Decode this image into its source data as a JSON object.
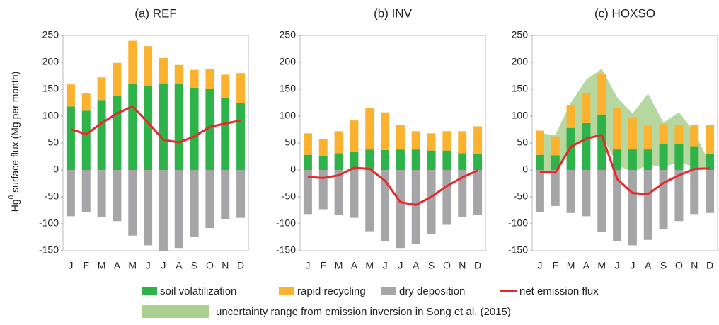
{
  "chart_data": [
    {
      "type": "bar",
      "title": "(a) REF",
      "y_label": {
        "base": "Hg",
        "sup": "0",
        "rest": " surface flux (Mg per month)"
      },
      "categories": [
        "J",
        "F",
        "M",
        "A",
        "M",
        "J",
        "J",
        "A",
        "S",
        "O",
        "N",
        "D"
      ],
      "ylim": [
        -150,
        250
      ],
      "yticks": [
        -150,
        -100,
        -50,
        0,
        50,
        100,
        150,
        200,
        250
      ],
      "series": [
        {
          "name": "soil volatilization",
          "type": "bar",
          "color": "#2eb34b",
          "values": [
            118,
            110,
            130,
            138,
            160,
            157,
            161,
            160,
            153,
            150,
            133,
            124
          ]
        },
        {
          "name": "rapid recycling",
          "type": "bar",
          "color": "#fbb32f",
          "values": [
            41,
            32,
            42,
            61,
            80,
            73,
            47,
            35,
            33,
            37,
            44,
            56
          ]
        },
        {
          "name": "dry deposition",
          "type": "bar",
          "color": "#a6a6a8",
          "values": [
            -86,
            -78,
            -88,
            -95,
            -122,
            -140,
            -150,
            -145,
            -125,
            -108,
            -92,
            -89
          ]
        },
        {
          "name": "net emission flux",
          "type": "line",
          "color": "#e8282b",
          "values": [
            76,
            66,
            87,
            105,
            118,
            88,
            56,
            51,
            62,
            80,
            86,
            92
          ]
        }
      ]
    },
    {
      "type": "bar",
      "title": "(b) INV",
      "categories": [
        "J",
        "F",
        "M",
        "A",
        "M",
        "J",
        "J",
        "A",
        "S",
        "O",
        "N",
        "D"
      ],
      "ylim": [
        -150,
        250
      ],
      "yticks": [
        -150,
        -100,
        -50,
        0,
        50,
        100,
        150,
        200,
        250
      ],
      "series": [
        {
          "type": "bar",
          "color": "#2eb34b",
          "values": [
            28,
            26,
            31,
            33,
            38,
            37,
            38,
            38,
            36,
            36,
            31,
            29
          ]
        },
        {
          "type": "bar",
          "color": "#fbb32f",
          "values": [
            40,
            31,
            41,
            59,
            77,
            70,
            46,
            34,
            32,
            36,
            41,
            52
          ]
        },
        {
          "type": "bar",
          "color": "#a6a6a8",
          "values": [
            -82,
            -73,
            -84,
            -89,
            -114,
            -133,
            -145,
            -137,
            -119,
            -102,
            -87,
            -84
          ]
        },
        {
          "type": "line",
          "color": "#e8282b",
          "values": [
            -13,
            -15,
            -10,
            4,
            2,
            -20,
            -60,
            -65,
            -50,
            -30,
            -14,
            -1
          ]
        }
      ]
    },
    {
      "type": "bar",
      "title": "(c) HOXSO",
      "categories": [
        "J",
        "F",
        "M",
        "A",
        "M",
        "J",
        "J",
        "A",
        "S",
        "O",
        "N",
        "D"
      ],
      "ylim": [
        -150,
        250
      ],
      "yticks": [
        -150,
        -100,
        -50,
        0,
        50,
        100,
        150,
        200,
        250
      ],
      "series": [
        {
          "name": "uncertainty range from emission inversion in Song et al. (2015)",
          "type": "area",
          "color": "#a9d08e",
          "lower": [
            -3,
            -5,
            45,
            60,
            65,
            10,
            -5,
            10,
            5,
            15,
            5,
            0
          ],
          "upper": [
            68,
            65,
            125,
            168,
            188,
            135,
            105,
            142,
            88,
            107,
            70,
            12
          ]
        },
        {
          "type": "bar",
          "color": "#2eb34b",
          "values": [
            28,
            27,
            78,
            87,
            103,
            38,
            38,
            38,
            49,
            48,
            44,
            30
          ]
        },
        {
          "type": "bar",
          "color": "#fbb32f",
          "values": [
            45,
            35,
            43,
            56,
            75,
            77,
            58,
            44,
            36,
            35,
            39,
            53
          ]
        },
        {
          "type": "bar",
          "color": "#a6a6a8",
          "values": [
            -78,
            -67,
            -80,
            -86,
            -115,
            -132,
            -140,
            -130,
            -110,
            -95,
            -82,
            -80
          ]
        },
        {
          "type": "line",
          "color": "#e8282b",
          "values": [
            -4,
            -5,
            43,
            58,
            65,
            -17,
            -43,
            -45,
            -24,
            -10,
            2,
            3
          ]
        }
      ]
    }
  ]
}
